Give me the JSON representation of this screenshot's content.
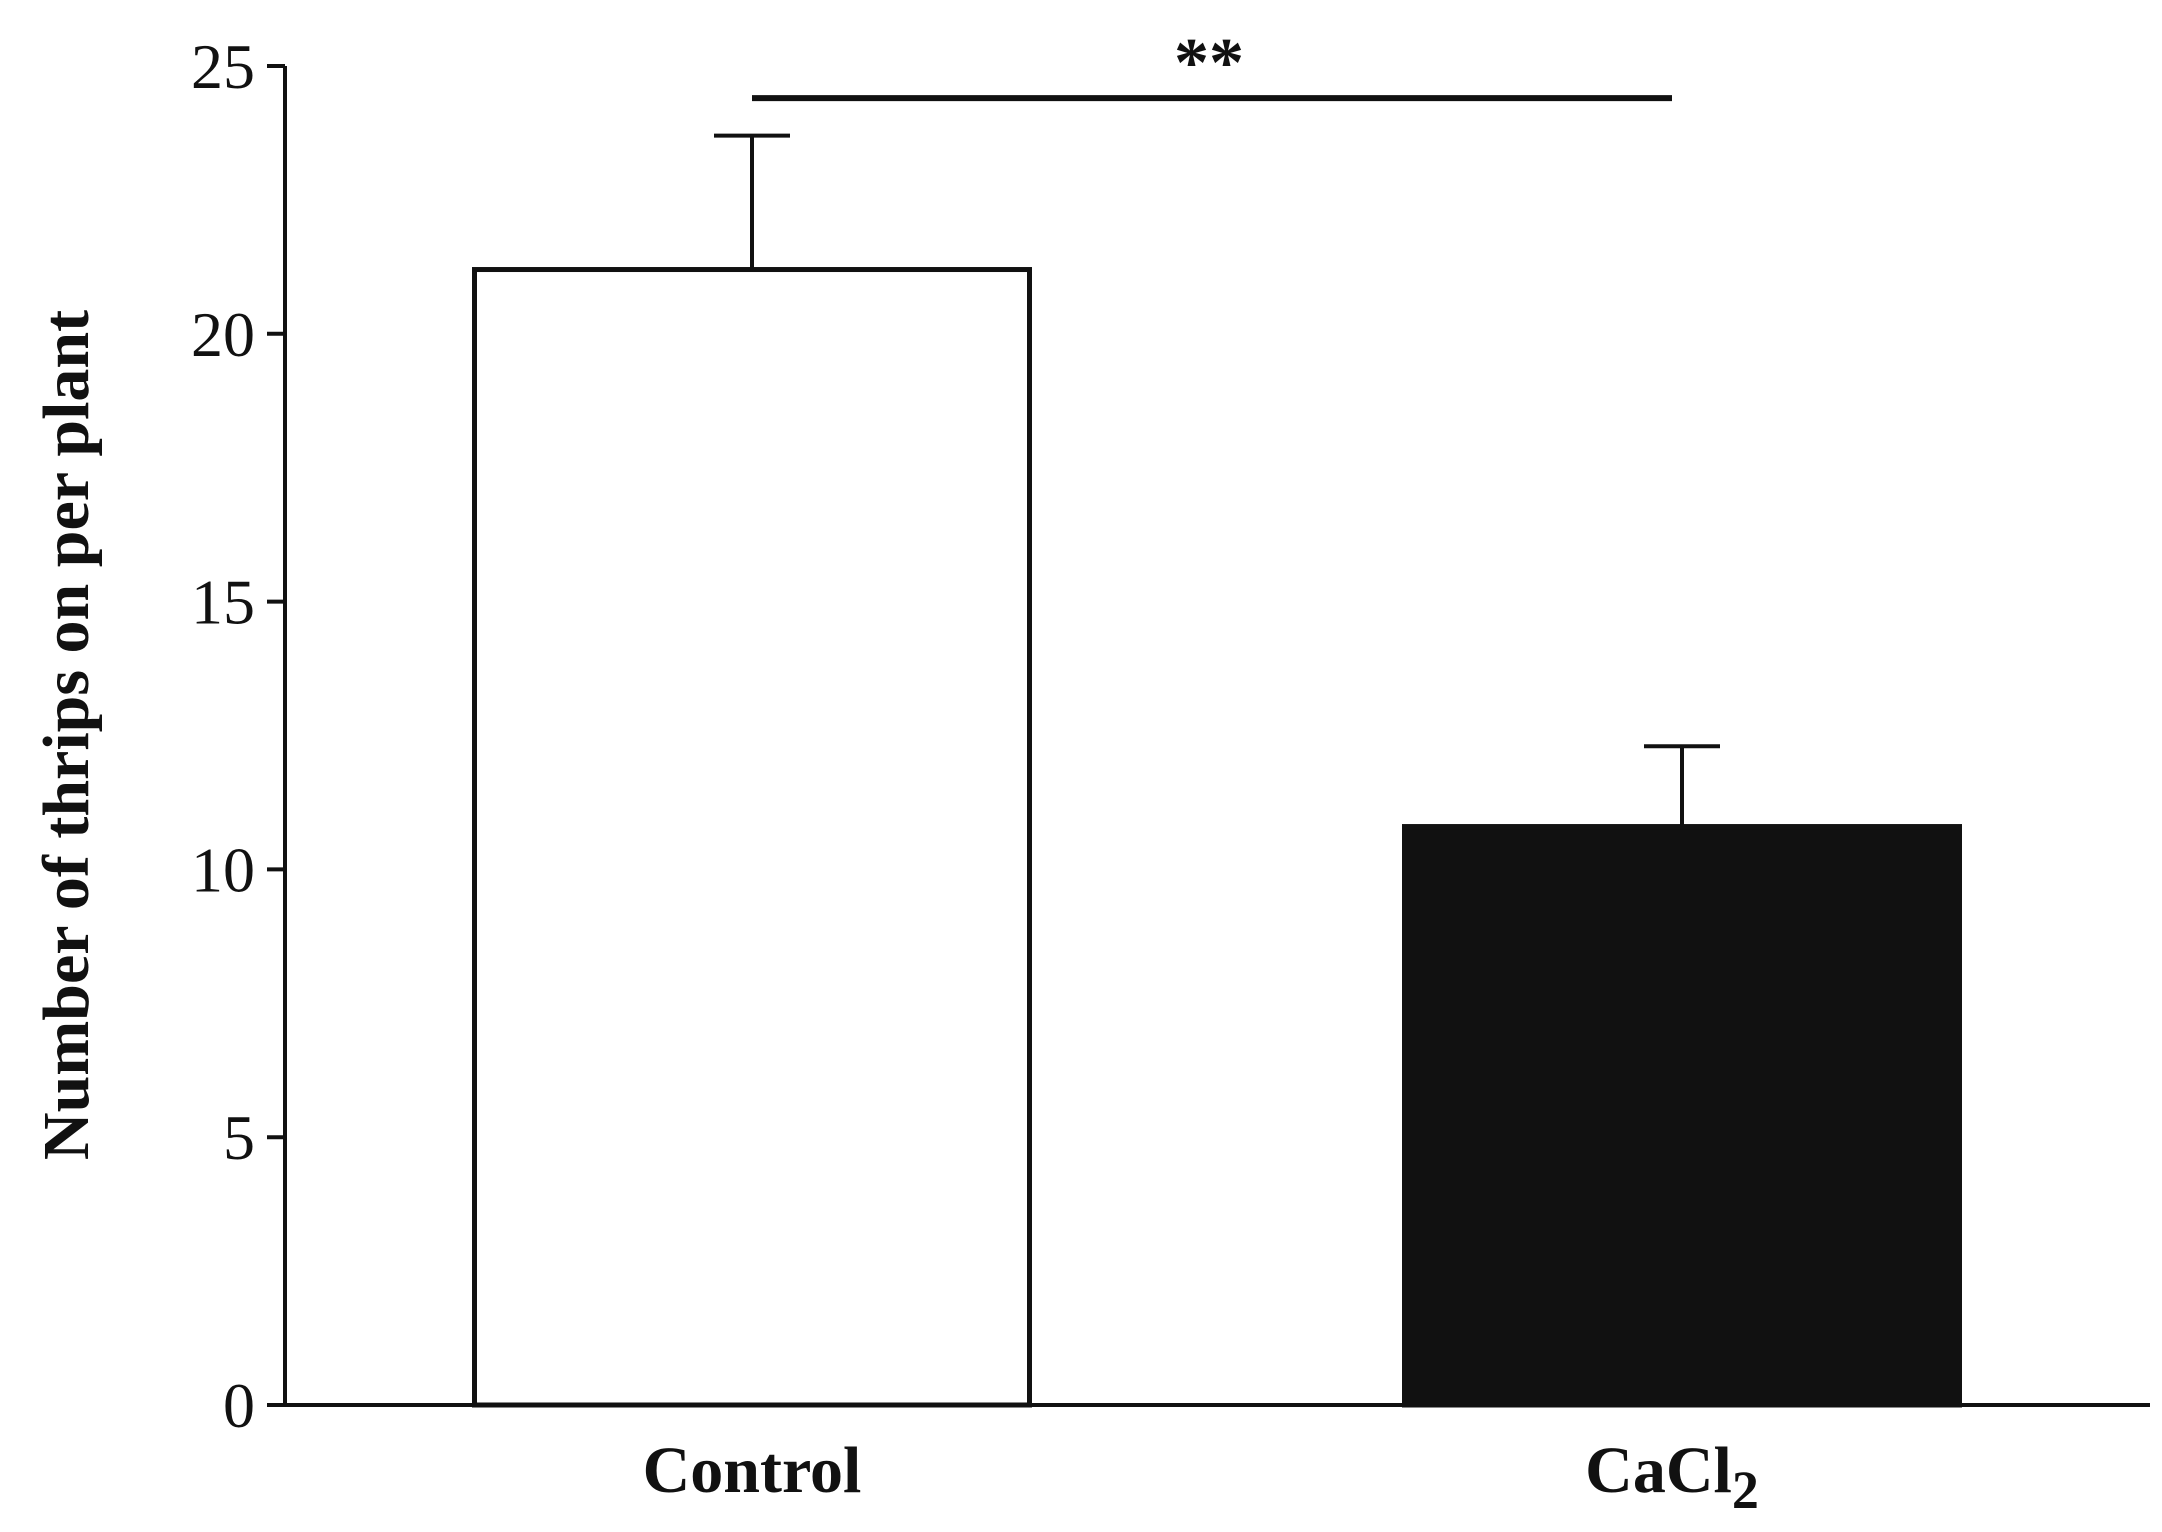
{
  "chart_data": {
    "type": "bar",
    "categories": [
      "Control",
      "CaCl2"
    ],
    "category_display": [
      {
        "base": "Control",
        "sub": ""
      },
      {
        "base": "CaCl",
        "sub": "2"
      }
    ],
    "values": [
      21.2,
      10.8
    ],
    "error_bars": [
      2.5,
      1.5
    ],
    "bar_fill": [
      "#ffffff",
      "#111111"
    ],
    "bar_stroke": "#111111",
    "title": "",
    "xlabel": "",
    "ylabel": "Number of thrips on per plant",
    "ylim": [
      0,
      25
    ],
    "yticks": [
      0,
      5,
      10,
      15,
      20,
      25
    ],
    "grid": false,
    "significance": {
      "between": [
        "Control",
        "CaCl2"
      ],
      "label": "**",
      "y": 24.4
    }
  }
}
